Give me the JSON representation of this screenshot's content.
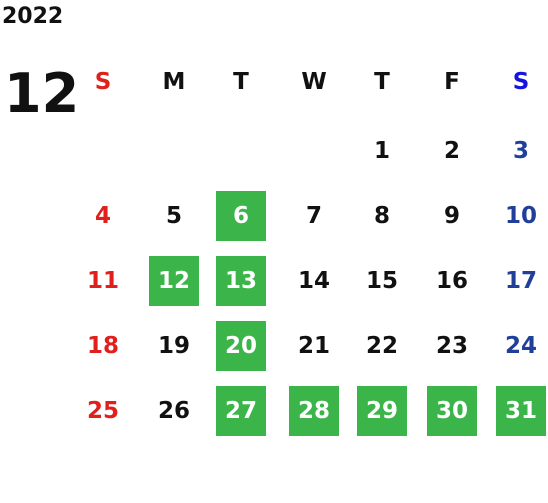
{
  "calendar": {
    "year": "2022",
    "month": "12",
    "weekdays": [
      "S",
      "M",
      "T",
      "W",
      "T",
      "F",
      "S"
    ],
    "weeks": [
      [
        null,
        null,
        null,
        null,
        {
          "day": 1,
          "highlight": false
        },
        {
          "day": 2,
          "highlight": false
        },
        {
          "day": 3,
          "highlight": false
        }
      ],
      [
        {
          "day": 4,
          "highlight": false
        },
        {
          "day": 5,
          "highlight": false
        },
        {
          "day": 6,
          "highlight": true
        },
        {
          "day": 7,
          "highlight": false
        },
        {
          "day": 8,
          "highlight": false
        },
        {
          "day": 9,
          "highlight": false
        },
        {
          "day": 10,
          "highlight": false
        }
      ],
      [
        {
          "day": 11,
          "highlight": false
        },
        {
          "day": 12,
          "highlight": true
        },
        {
          "day": 13,
          "highlight": true
        },
        {
          "day": 14,
          "highlight": false
        },
        {
          "day": 15,
          "highlight": false
        },
        {
          "day": 16,
          "highlight": false
        },
        {
          "day": 17,
          "highlight": false
        }
      ],
      [
        {
          "day": 18,
          "highlight": false
        },
        {
          "day": 19,
          "highlight": false
        },
        {
          "day": 20,
          "highlight": true
        },
        {
          "day": 21,
          "highlight": false
        },
        {
          "day": 22,
          "highlight": false
        },
        {
          "day": 23,
          "highlight": false
        },
        {
          "day": 24,
          "highlight": false
        }
      ],
      [
        {
          "day": 25,
          "highlight": false
        },
        {
          "day": 26,
          "highlight": false
        },
        {
          "day": 27,
          "highlight": true
        },
        {
          "day": 28,
          "highlight": true
        },
        {
          "day": 29,
          "highlight": true
        },
        {
          "day": 30,
          "highlight": true
        },
        {
          "day": 31,
          "highlight": true
        }
      ]
    ]
  }
}
